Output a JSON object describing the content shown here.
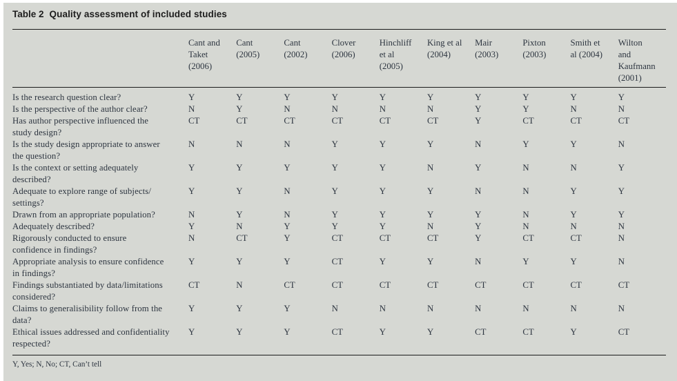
{
  "title": {
    "label": "Table 2",
    "caption": "Quality assessment of included studies"
  },
  "table": {
    "columns": [
      "Cant and\nTaket\n(2006)",
      "Cant\n(2005)",
      "Cant\n(2002)",
      "Clover\n(2006)",
      "Hinchliff\net al\n(2005)",
      "King et al\n(2004)",
      "Mair\n(2003)",
      "Pixton\n(2003)",
      "Smith et\nal (2004)",
      "Wilton\nand\nKaufmann\n(2001)"
    ],
    "rows": [
      {
        "question": "Is the research question clear?",
        "values": [
          "Y",
          "Y",
          "Y",
          "Y",
          "Y",
          "Y",
          "Y",
          "Y",
          "Y",
          "Y"
        ]
      },
      {
        "question": "Is the perspective of the author clear?",
        "values": [
          "N",
          "Y",
          "N",
          "N",
          "N",
          "N",
          "Y",
          "Y",
          "N",
          "N"
        ]
      },
      {
        "question": "Has author perspective influenced the\nstudy design?",
        "values": [
          "CT",
          "CT",
          "CT",
          "CT",
          "CT",
          "CT",
          "Y",
          "CT",
          "CT",
          "CT"
        ]
      },
      {
        "question": "Is the study design appropriate to answer\nthe question?",
        "values": [
          "N",
          "N",
          "N",
          "Y",
          "Y",
          "Y",
          "N",
          "Y",
          "Y",
          "N"
        ]
      },
      {
        "question": "Is the context or setting adequately\ndescribed?",
        "values": [
          "Y",
          "Y",
          "Y",
          "Y",
          "Y",
          "N",
          "Y",
          "N",
          "N",
          "Y"
        ]
      },
      {
        "question": "Adequate to explore range of subjects/\nsettings?",
        "values": [
          "Y",
          "Y",
          "N",
          "Y",
          "Y",
          "Y",
          "N",
          "N",
          "Y",
          "Y"
        ]
      },
      {
        "question": "Drawn from an appropriate population?",
        "values": [
          "N",
          "Y",
          "N",
          "Y",
          "Y",
          "Y",
          "Y",
          "N",
          "Y",
          "Y"
        ]
      },
      {
        "question": "Adequately described?",
        "values": [
          "Y",
          "N",
          "Y",
          "Y",
          "Y",
          "N",
          "Y",
          "N",
          "N",
          "N"
        ]
      },
      {
        "question": "Rigorously conducted to ensure\nconfidence in findings?",
        "values": [
          "N",
          "CT",
          "Y",
          "CT",
          "CT",
          "CT",
          "Y",
          "CT",
          "CT",
          "N"
        ]
      },
      {
        "question": "Appropriate analysis to ensure confidence\nin findings?",
        "values": [
          "Y",
          "Y",
          "Y",
          "CT",
          "Y",
          "Y",
          "N",
          "Y",
          "Y",
          "N"
        ]
      },
      {
        "question": "Findings substantiated by data/limitations\nconsidered?",
        "values": [
          "CT",
          "N",
          "CT",
          "CT",
          "CT",
          "CT",
          "CT",
          "CT",
          "CT",
          "CT"
        ]
      },
      {
        "question": "Claims to generalisibility follow from the\ndata?",
        "values": [
          "Y",
          "Y",
          "Y",
          "N",
          "N",
          "N",
          "N",
          "N",
          "N",
          "N"
        ]
      },
      {
        "question": "Ethical issues addressed and confidentiality\nrespected?",
        "values": [
          "Y",
          "Y",
          "Y",
          "CT",
          "Y",
          "Y",
          "CT",
          "CT",
          "Y",
          "CT"
        ]
      }
    ],
    "footnote": "Y, Yes; N, No; CT, Can’t tell"
  },
  "colors": {
    "panel_bg": "#d6d8d3",
    "text": "#2d3540",
    "title_text": "#1d1d1d",
    "rule": "#1a1a1a"
  }
}
